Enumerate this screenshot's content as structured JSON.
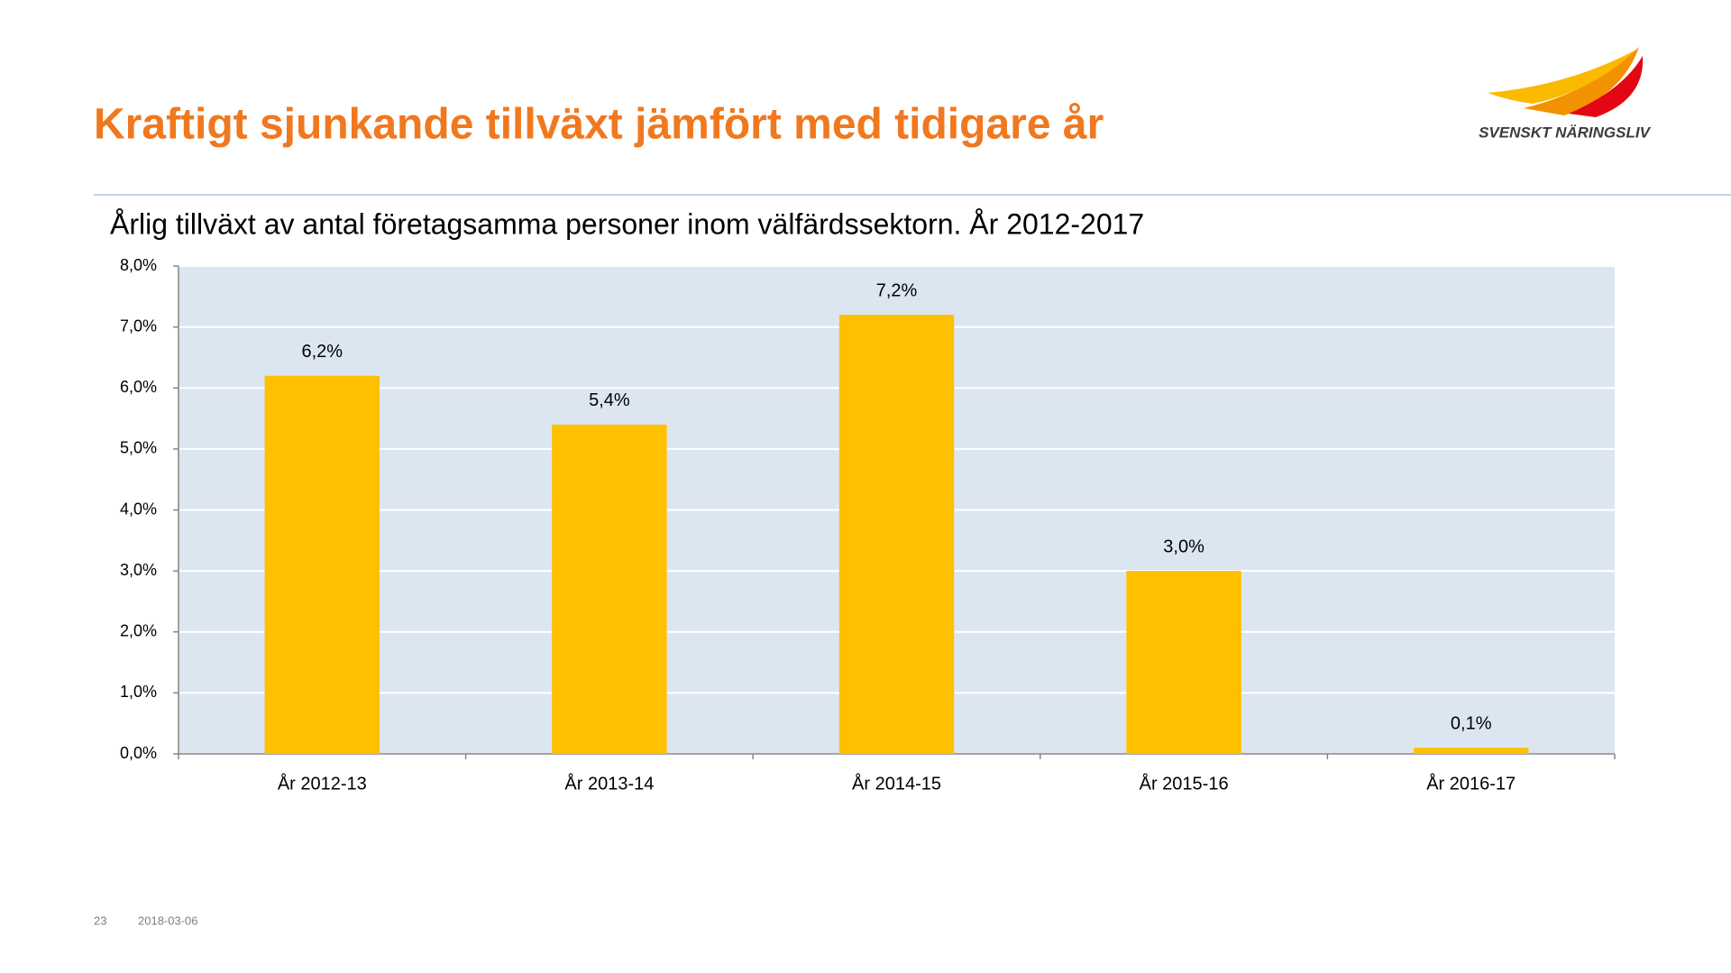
{
  "header": {
    "title": "Kraftigt sjunkande tillväxt jämfört med tidigare år",
    "logo_text": "SVENSKT NÄRINGSLIV"
  },
  "chart_data": {
    "type": "bar",
    "title": "Årlig tillväxt av antal företagsamma personer inom välfärdssektorn. År 2012-2017",
    "categories": [
      "År 2012-13",
      "År 2013-14",
      "År 2014-15",
      "År 2015-16",
      "År 2016-17"
    ],
    "values": [
      6.2,
      5.4,
      7.2,
      3.0,
      0.1
    ],
    "value_labels": [
      "6,2%",
      "5,4%",
      "7,2%",
      "3,0%",
      "0,1%"
    ],
    "color": "#ffc000",
    "ylim": [
      0,
      8
    ],
    "yticks": [
      {
        "value": 0,
        "label": "0,0%"
      },
      {
        "value": 1,
        "label": "1,0%"
      },
      {
        "value": 2,
        "label": "2,0%"
      },
      {
        "value": 3,
        "label": "3,0%"
      },
      {
        "value": 4,
        "label": "4,0%"
      },
      {
        "value": 5,
        "label": "5,0%"
      },
      {
        "value": 6,
        "label": "6,0%"
      },
      {
        "value": 7,
        "label": "7,0%"
      },
      {
        "value": 8,
        "label": "8,0%"
      }
    ],
    "grid": true
  },
  "footer": {
    "page": "23",
    "date": "2018-03-06"
  }
}
